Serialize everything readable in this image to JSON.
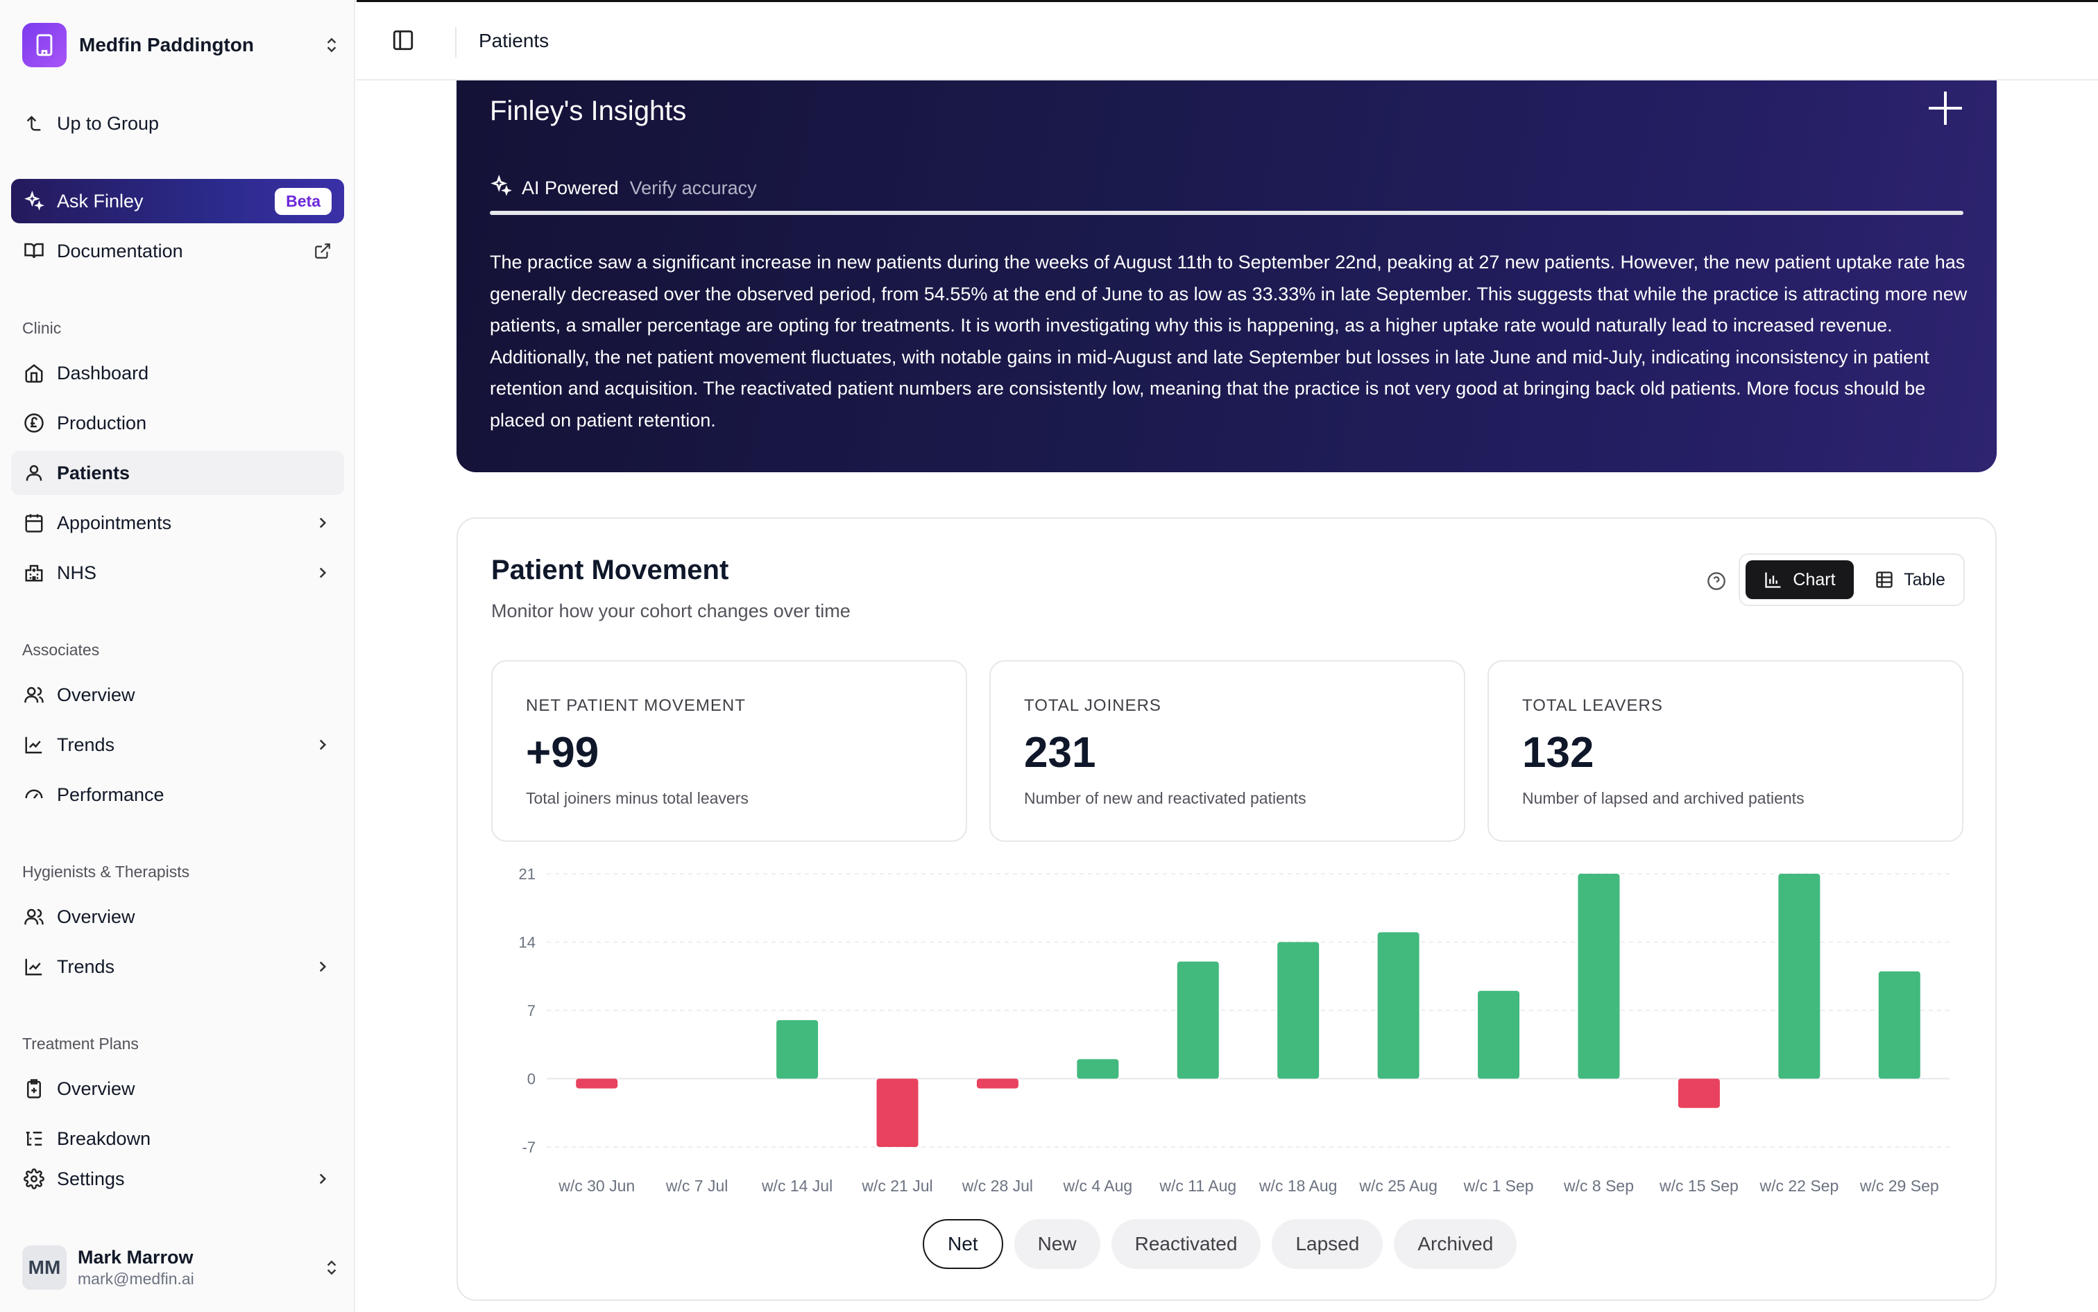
{
  "org": {
    "name": "Medfin Paddington"
  },
  "sidebar": {
    "up_to_group": "Up to Group",
    "ask_finley": "Ask Finley",
    "beta": "Beta",
    "documentation": "Documentation",
    "sections": {
      "clinic": "Clinic",
      "associates": "Associates",
      "hygienists": "Hygienists & Therapists",
      "treatment_plans": "Treatment Plans"
    },
    "clinic_items": [
      "Dashboard",
      "Production",
      "Patients",
      "Appointments",
      "NHS"
    ],
    "associates_items": [
      "Overview",
      "Trends",
      "Performance"
    ],
    "hygienist_items": [
      "Overview",
      "Trends"
    ],
    "treatment_items": [
      "Overview",
      "Breakdown"
    ],
    "settings": "Settings",
    "active_item": "Patients"
  },
  "user": {
    "initials": "MM",
    "name": "Mark Marrow",
    "email": "mark@medfin.ai"
  },
  "header": {
    "title": "Patients"
  },
  "insights": {
    "title": "Finley's Insights",
    "ai_powered": "AI Powered",
    "verify": "Verify accuracy",
    "body": "The practice saw a significant increase in new patients during the weeks of August 11th to September 22nd, peaking at 27 new patients. However, the new patient uptake rate has generally decreased over the observed period, from 54.55% at the end of June to as low as 33.33% in late September. This suggests that while the practice is attracting more new patients, a smaller percentage are opting for treatments. It is worth investigating why this is happening, as a higher uptake rate would naturally lead to increased revenue. Additionally, the net patient movement fluctuates, with notable gains in mid-August and late September but losses in late June and mid-July, indicating inconsistency in patient retention and acquisition. The reactivated patient numbers are consistently low, meaning that the practice is not very good at bringing back old patients. More focus should be placed on patient retention."
  },
  "patient_movement": {
    "title": "Patient Movement",
    "subtitle": "Monitor how your cohort changes over time",
    "view_toggle": {
      "chart": "Chart",
      "table": "Table",
      "selected": "Chart"
    },
    "stats": [
      {
        "label": "NET PATIENT MOVEMENT",
        "value": "+99",
        "desc": "Total joiners minus total leavers"
      },
      {
        "label": "TOTAL JOINERS",
        "value": "231",
        "desc": "Number of new and reactivated patients"
      },
      {
        "label": "TOTAL LEAVERS",
        "value": "132",
        "desc": "Number of lapsed and archived patients"
      }
    ],
    "filters": [
      "Net",
      "New",
      "Reactivated",
      "Lapsed",
      "Archived"
    ],
    "selected_filter": "Net"
  },
  "chart_data": {
    "type": "bar",
    "categories": [
      "w/c 30 Jun",
      "w/c 7 Jul",
      "w/c 14 Jul",
      "w/c 21 Jul",
      "w/c 28 Jul",
      "w/c 4 Aug",
      "w/c 11 Aug",
      "w/c 18 Aug",
      "w/c 25 Aug",
      "w/c 1 Sep",
      "w/c 8 Sep",
      "w/c 15 Sep",
      "w/c 22 Sep",
      "w/c 29 Sep"
    ],
    "values": [
      -1,
      0,
      6,
      -7,
      -1,
      2,
      12,
      14,
      15,
      9,
      21,
      -3,
      21,
      11
    ],
    "yticks": [
      21,
      14,
      7,
      0,
      -7
    ],
    "ylim": [
      -7,
      21
    ],
    "grid": true,
    "colors": {
      "positive": "#42b97d",
      "negative": "#e8425e"
    }
  }
}
